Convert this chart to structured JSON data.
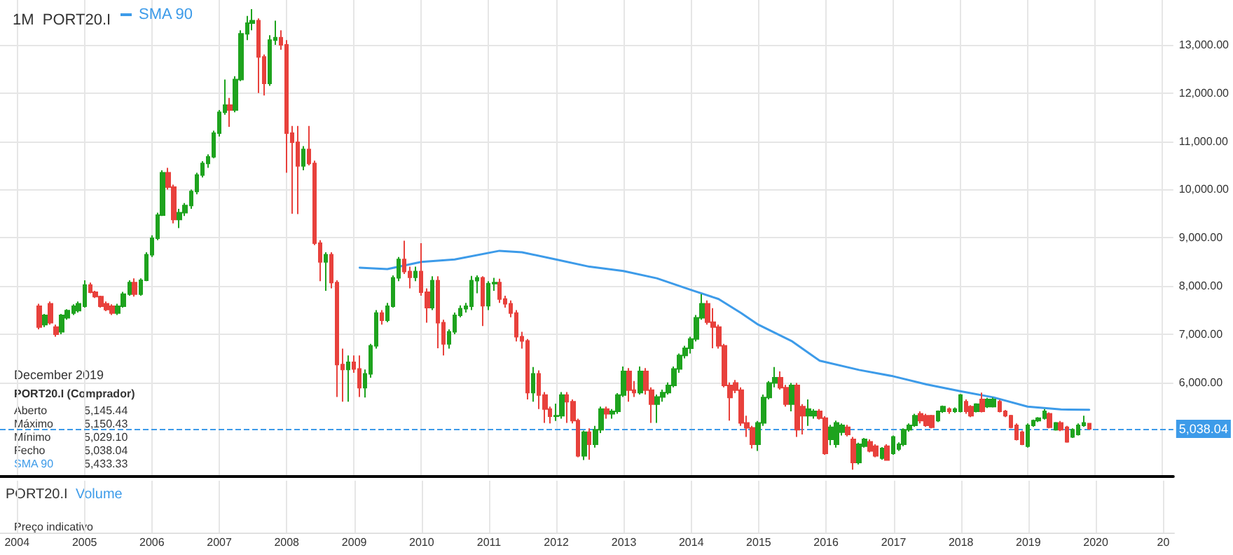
{
  "chart_data": {
    "type": "candlestick",
    "title": "1M  PORT20.I",
    "x": [
      "2004-05",
      "2004-06",
      "2004-07",
      "2004-08",
      "2004-09",
      "2004-10",
      "2004-11",
      "2004-12",
      "2005-01",
      "2005-02",
      "2005-03",
      "2005-04",
      "2005-05",
      "2005-06",
      "2005-07",
      "2005-08",
      "2005-09",
      "2005-10",
      "2005-11",
      "2005-12",
      "2006-01",
      "2006-02",
      "2006-03",
      "2006-04",
      "2006-05",
      "2006-06",
      "2006-07",
      "2006-08",
      "2006-09",
      "2006-10",
      "2006-11",
      "2006-12",
      "2007-01",
      "2007-02",
      "2007-03",
      "2007-04",
      "2007-05",
      "2007-06",
      "2007-07",
      "2007-08",
      "2007-09",
      "2007-10",
      "2007-11",
      "2007-12",
      "2008-01",
      "2008-02",
      "2008-03",
      "2008-04",
      "2008-05",
      "2008-06",
      "2008-07",
      "2008-08",
      "2008-09",
      "2008-10",
      "2008-11",
      "2008-12",
      "2009-01",
      "2009-02",
      "2009-03",
      "2009-04",
      "2009-05",
      "2009-06",
      "2009-07",
      "2009-08",
      "2009-09",
      "2009-10",
      "2009-11",
      "2009-12",
      "2010-01",
      "2010-02",
      "2010-03",
      "2010-04",
      "2010-05",
      "2010-06",
      "2010-07",
      "2010-08",
      "2010-09",
      "2010-10",
      "2010-11",
      "2010-12",
      "2011-01",
      "2011-02",
      "2011-03",
      "2011-04",
      "2011-05",
      "2011-06",
      "2011-07",
      "2011-08",
      "2011-09",
      "2011-10",
      "2011-11",
      "2011-12",
      "2012-01",
      "2012-02",
      "2012-03",
      "2012-04",
      "2012-05",
      "2012-06",
      "2012-07",
      "2012-08",
      "2012-09",
      "2012-10",
      "2012-11",
      "2012-12",
      "2013-01",
      "2013-02",
      "2013-03",
      "2013-04",
      "2013-05",
      "2013-06",
      "2013-07",
      "2013-08",
      "2013-09",
      "2013-10",
      "2013-11",
      "2013-12",
      "2014-01",
      "2014-02",
      "2014-03",
      "2014-04",
      "2014-05",
      "2014-06",
      "2014-07",
      "2014-08",
      "2014-09",
      "2014-10",
      "2014-11",
      "2014-12",
      "2015-01",
      "2015-02",
      "2015-03",
      "2015-04",
      "2015-05",
      "2015-06",
      "2015-07",
      "2015-08",
      "2015-09",
      "2015-10",
      "2015-11",
      "2015-12",
      "2016-01",
      "2016-02",
      "2016-03",
      "2016-04",
      "2016-05",
      "2016-06",
      "2016-07",
      "2016-08",
      "2016-09",
      "2016-10",
      "2016-11",
      "2016-12",
      "2017-01",
      "2017-02",
      "2017-03",
      "2017-04",
      "2017-05",
      "2017-06",
      "2017-07",
      "2017-08",
      "2017-09",
      "2017-10",
      "2017-11",
      "2017-12",
      "2018-01",
      "2018-02",
      "2018-03",
      "2018-04",
      "2018-05",
      "2018-06",
      "2018-07",
      "2018-08",
      "2018-09",
      "2018-10",
      "2018-11",
      "2018-12",
      "2019-01",
      "2019-02",
      "2019-03",
      "2019-04",
      "2019-05",
      "2019-06",
      "2019-07",
      "2019-08",
      "2019-09",
      "2019-10",
      "2019-11",
      "2019-12"
    ],
    "ohlc": [
      [
        7580,
        7630,
        7100,
        7150
      ],
      [
        7200,
        7420,
        7150,
        7390
      ],
      [
        7630,
        7680,
        7200,
        7240
      ],
      [
        7150,
        7200,
        6950,
        7000
      ],
      [
        7050,
        7420,
        7000,
        7390
      ],
      [
        7340,
        7520,
        7300,
        7490
      ],
      [
        7440,
        7620,
        7400,
        7580
      ],
      [
        7490,
        7680,
        7450,
        7630
      ],
      [
        7580,
        8120,
        7550,
        8020
      ],
      [
        8020,
        8070,
        7850,
        7870
      ],
      [
        7870,
        7900,
        7750,
        7780
      ],
      [
        7780,
        7800,
        7550,
        7580
      ],
      [
        7630,
        7680,
        7480,
        7510
      ],
      [
        7580,
        7620,
        7400,
        7440
      ],
      [
        7440,
        7630,
        7400,
        7580
      ],
      [
        7580,
        7880,
        7550,
        7830
      ],
      [
        7830,
        8120,
        7800,
        8070
      ],
      [
        8070,
        8160,
        7780,
        7830
      ],
      [
        7830,
        8160,
        7800,
        8120
      ],
      [
        8120,
        8700,
        8100,
        8650
      ],
      [
        8650,
        9050,
        8600,
        8990
      ],
      [
        8990,
        9520,
        8950,
        9470
      ],
      [
        9470,
        10400,
        9450,
        10350
      ],
      [
        10350,
        10450,
        10000,
        10050
      ],
      [
        10050,
        10100,
        9300,
        9380
      ],
      [
        9380,
        9600,
        9200,
        9520
      ],
      [
        9520,
        9720,
        9450,
        9670
      ],
      [
        9670,
        10000,
        9600,
        9960
      ],
      [
        9960,
        10350,
        9900,
        10300
      ],
      [
        10300,
        10590,
        10250,
        10540
      ],
      [
        10540,
        10730,
        10450,
        10680
      ],
      [
        10680,
        11220,
        10650,
        11170
      ],
      [
        11170,
        11650,
        11100,
        11600
      ],
      [
        11600,
        12280,
        11550,
        11750
      ],
      [
        11750,
        11900,
        11300,
        11650
      ],
      [
        11650,
        12350,
        11600,
        12280
      ],
      [
        12280,
        13300,
        12250,
        13230
      ],
      [
        13230,
        13600,
        13100,
        13450
      ],
      [
        13450,
        13740,
        13300,
        13500
      ],
      [
        13500,
        13550,
        12000,
        12750
      ],
      [
        12750,
        12800,
        11950,
        12200
      ],
      [
        12200,
        13200,
        12150,
        13100
      ],
      [
        13100,
        13500,
        13000,
        13150
      ],
      [
        13150,
        13300,
        12900,
        13000
      ],
      [
        13000,
        13100,
        10350,
        11170
      ],
      [
        11170,
        11320,
        9500,
        10980
      ],
      [
        10980,
        11320,
        9490,
        10490
      ],
      [
        10490,
        10900,
        10400,
        10830
      ],
      [
        10830,
        11320,
        10500,
        10540
      ],
      [
        10540,
        10600,
        8850,
        8890
      ],
      [
        8890,
        8950,
        8100,
        8500
      ],
      [
        8500,
        8700,
        7900,
        8650
      ],
      [
        8650,
        8700,
        7950,
        8070
      ],
      [
        8070,
        8120,
        5700,
        6370
      ],
      [
        6370,
        6700,
        5600,
        6270
      ],
      [
        6270,
        6560,
        5600,
        6420
      ],
      [
        6420,
        6560,
        6200,
        6280
      ],
      [
        6280,
        6560,
        5700,
        5890
      ],
      [
        5890,
        6270,
        5690,
        6180
      ],
      [
        6180,
        6800,
        6100,
        6760
      ],
      [
        6760,
        7500,
        6700,
        7440
      ],
      [
        7440,
        7500,
        7200,
        7290
      ],
      [
        7290,
        7650,
        7250,
        7580
      ],
      [
        7580,
        8220,
        7550,
        8170
      ],
      [
        8170,
        8600,
        8100,
        8550
      ],
      [
        8550,
        8940,
        8250,
        8300
      ],
      [
        8300,
        8400,
        7950,
        8180
      ],
      [
        8180,
        8400,
        8100,
        8300
      ],
      [
        8300,
        8890,
        7800,
        7870
      ],
      [
        7870,
        7950,
        7240,
        7550
      ],
      [
        7550,
        8200,
        7500,
        8110
      ],
      [
        8110,
        8200,
        6710,
        7240
      ],
      [
        7240,
        7300,
        6560,
        6800
      ],
      [
        6800,
        7100,
        6700,
        7050
      ],
      [
        7050,
        7450,
        7000,
        7390
      ],
      [
        7390,
        7600,
        7350,
        7530
      ],
      [
        7530,
        7650,
        7450,
        7580
      ],
      [
        7580,
        8210,
        7500,
        8110
      ],
      [
        8110,
        8220,
        7850,
        8170
      ],
      [
        8170,
        8200,
        7170,
        7590
      ],
      [
        7590,
        8100,
        7500,
        8050
      ],
      [
        8050,
        8170,
        7900,
        8070
      ],
      [
        8070,
        8150,
        7650,
        7730
      ],
      [
        7730,
        7800,
        7550,
        7630
      ],
      [
        7630,
        7700,
        7350,
        7440
      ],
      [
        7440,
        7500,
        6850,
        6950
      ],
      [
        6950,
        7050,
        6700,
        6860
      ],
      [
        6860,
        6900,
        5650,
        5790
      ],
      [
        5790,
        6320,
        5600,
        6180
      ],
      [
        6180,
        6250,
        5450,
        5740
      ],
      [
        5740,
        5800,
        5160,
        5450
      ],
      [
        5450,
        5500,
        5150,
        5300
      ],
      [
        5300,
        5560,
        5200,
        5310
      ],
      [
        5310,
        5800,
        5250,
        5740
      ],
      [
        5740,
        5800,
        5160,
        5600
      ],
      [
        5600,
        5650,
        5150,
        5210
      ],
      [
        5210,
        5250,
        4450,
        4480
      ],
      [
        4480,
        5000,
        4390,
        4970
      ],
      [
        4970,
        5050,
        4400,
        4720
      ],
      [
        4720,
        5100,
        4650,
        5020
      ],
      [
        5020,
        5500,
        4950,
        5450
      ],
      [
        5450,
        5500,
        5250,
        5350
      ],
      [
        5350,
        5450,
        5250,
        5400
      ],
      [
        5400,
        5780,
        5350,
        5740
      ],
      [
        5740,
        6330,
        5700,
        6230
      ],
      [
        6230,
        6300,
        5600,
        5840
      ],
      [
        5840,
        6030,
        5700,
        5790
      ],
      [
        5790,
        6330,
        5750,
        6230
      ],
      [
        6230,
        6300,
        5750,
        5840
      ],
      [
        5840,
        5900,
        5160,
        5550
      ],
      [
        5550,
        5750,
        5160,
        5700
      ],
      [
        5700,
        5850,
        5600,
        5790
      ],
      [
        5790,
        6000,
        5750,
        5940
      ],
      [
        5940,
        6330,
        5900,
        6280
      ],
      [
        6280,
        6600,
        6200,
        6560
      ],
      [
        6560,
        6760,
        6500,
        6710
      ],
      [
        6710,
        6950,
        6600,
        6900
      ],
      [
        6900,
        7400,
        6850,
        7340
      ],
      [
        7340,
        7830,
        7300,
        7630
      ],
      [
        7630,
        7700,
        7200,
        7250
      ],
      [
        7250,
        7540,
        6710,
        7150
      ],
      [
        7150,
        7200,
        6700,
        6760
      ],
      [
        6760,
        6800,
        5900,
        5940
      ],
      [
        5940,
        6000,
        5210,
        5690
      ],
      [
        5990,
        6050,
        5780,
        5840
      ],
      [
        5840,
        5900,
        5100,
        5160
      ],
      [
        5160,
        5310,
        4870,
        5060
      ],
      [
        5060,
        5100,
        4630,
        4720
      ],
      [
        4720,
        5200,
        4580,
        5160
      ],
      [
        5160,
        5750,
        5100,
        5690
      ],
      [
        5690,
        6030,
        5650,
        5990
      ],
      [
        5990,
        6320,
        5900,
        6100
      ],
      [
        6100,
        6230,
        5850,
        5890
      ],
      [
        5890,
        5950,
        5500,
        5550
      ],
      [
        5550,
        5990,
        5400,
        5940
      ],
      [
        5940,
        5990,
        4870,
        5020
      ],
      [
        5500,
        5550,
        4920,
        5310
      ],
      [
        5310,
        5650,
        5100,
        5450
      ],
      [
        5310,
        5450,
        5250,
        5400
      ],
      [
        5400,
        5450,
        5230,
        5260
      ],
      [
        5260,
        5300,
        4500,
        4530
      ],
      [
        4820,
        5120,
        4700,
        5070
      ],
      [
        4720,
        5210,
        4650,
        5160
      ],
      [
        4970,
        5150,
        4900,
        5110
      ],
      [
        5070,
        5120,
        4880,
        4920
      ],
      [
        4820,
        4870,
        4190,
        4340
      ],
      [
        4340,
        4750,
        4300,
        4720
      ],
      [
        4680,
        4850,
        4650,
        4820
      ],
      [
        4770,
        4820,
        4550,
        4580
      ],
      [
        4680,
        4720,
        4450,
        4480
      ],
      [
        4430,
        4660,
        4400,
        4630
      ],
      [
        4680,
        4720,
        4380,
        4390
      ],
      [
        4530,
        4900,
        4500,
        4870
      ],
      [
        4620,
        4760,
        4580,
        4720
      ],
      [
        4720,
        5050,
        4680,
        5020
      ],
      [
        5020,
        5150,
        4980,
        5110
      ],
      [
        5110,
        5350,
        5080,
        5310
      ],
      [
        5350,
        5400,
        5150,
        5210
      ],
      [
        5310,
        5350,
        5080,
        5110
      ],
      [
        5310,
        5330,
        5050,
        5070
      ],
      [
        5210,
        5420,
        5180,
        5400
      ],
      [
        5400,
        5520,
        5370,
        5500
      ],
      [
        5450,
        5480,
        5350,
        5400
      ],
      [
        5400,
        5480,
        5370,
        5450
      ],
      [
        5400,
        5760,
        5380,
        5740
      ],
      [
        5600,
        5650,
        5350,
        5400
      ],
      [
        5500,
        5530,
        5280,
        5310
      ],
      [
        5400,
        5570,
        5380,
        5550
      ],
      [
        5650,
        5790,
        5380,
        5400
      ],
      [
        5500,
        5680,
        5470,
        5650
      ],
      [
        5500,
        5690,
        5480,
        5650
      ],
      [
        5600,
        5640,
        5380,
        5400
      ],
      [
        5400,
        5430,
        5280,
        5310
      ],
      [
        5310,
        5330,
        5050,
        5070
      ],
      [
        5110,
        5150,
        4800,
        4820
      ],
      [
        4970,
        5000,
        4700,
        4720
      ],
      [
        4680,
        5150,
        4650,
        5110
      ],
      [
        5110,
        5230,
        5080,
        5210
      ],
      [
        5210,
        5280,
        5180,
        5260
      ],
      [
        5260,
        5450,
        5230,
        5400
      ],
      [
        5350,
        5380,
        5050,
        5070
      ],
      [
        5020,
        5180,
        5000,
        5160
      ],
      [
        5160,
        5200,
        4990,
        5020
      ],
      [
        5070,
        5100,
        4750,
        4770
      ],
      [
        4870,
        5050,
        4850,
        5020
      ],
      [
        4920,
        5150,
        4900,
        5110
      ],
      [
        5110,
        5310,
        5080,
        5160
      ],
      [
        5145.44,
        5150.43,
        5029.1,
        5038.04
      ]
    ],
    "colors": [
      "#e8413c",
      "#1ea31e",
      "#e8413c",
      "#e8413c",
      "#1ea31e",
      "#1ea31e",
      "#1ea31e",
      "#1ea31e",
      "#1ea31e",
      "#e8413c",
      "#e8413c",
      "#e8413c",
      "#e8413c",
      "#e8413c",
      "#1ea31e",
      "#1ea31e",
      "#1ea31e",
      "#e8413c",
      "#1ea31e",
      "#1ea31e",
      "#1ea31e",
      "#1ea31e",
      "#1ea31e",
      "#e8413c",
      "#e8413c",
      "#1ea31e",
      "#1ea31e",
      "#1ea31e",
      "#1ea31e",
      "#1ea31e",
      "#1ea31e",
      "#1ea31e",
      "#1ea31e",
      "#1ea31e",
      "#e8413c",
      "#1ea31e",
      "#1ea31e",
      "#1ea31e",
      "#1ea31e",
      "#e8413c",
      "#e8413c",
      "#1ea31e",
      "#1ea31e",
      "#e8413c",
      "#e8413c",
      "#e8413c",
      "#e8413c",
      "#1ea31e",
      "#e8413c",
      "#e8413c",
      "#e8413c",
      "#1ea31e",
      "#e8413c",
      "#e8413c",
      "#e8413c",
      "#1ea31e",
      "#e8413c",
      "#e8413c",
      "#1ea31e",
      "#1ea31e",
      "#1ea31e",
      "#e8413c",
      "#1ea31e",
      "#1ea31e",
      "#1ea31e",
      "#e8413c",
      "#e8413c",
      "#1ea31e",
      "#e8413c",
      "#e8413c",
      "#1ea31e",
      "#e8413c",
      "#e8413c",
      "#1ea31e",
      "#1ea31e",
      "#1ea31e",
      "#1ea31e",
      "#1ea31e",
      "#1ea31e",
      "#e8413c",
      "#1ea31e",
      "#1ea31e",
      "#e8413c",
      "#e8413c",
      "#e8413c",
      "#e8413c",
      "#e8413c",
      "#e8413c",
      "#1ea31e",
      "#e8413c",
      "#e8413c",
      "#e8413c",
      "#1ea31e",
      "#1ea31e",
      "#e8413c",
      "#e8413c",
      "#e8413c",
      "#1ea31e",
      "#e8413c",
      "#1ea31e",
      "#1ea31e",
      "#e8413c",
      "#1ea31e",
      "#1ea31e",
      "#1ea31e",
      "#e8413c",
      "#e8413c",
      "#1ea31e",
      "#e8413c",
      "#e8413c",
      "#1ea31e",
      "#1ea31e",
      "#1ea31e",
      "#1ea31e",
      "#1ea31e",
      "#1ea31e",
      "#1ea31e",
      "#1ea31e",
      "#1ea31e",
      "#e8413c",
      "#e8413c",
      "#e8413c",
      "#e8413c",
      "#e8413c",
      "#e8413c",
      "#e8413c",
      "#e8413c",
      "#e8413c",
      "#1ea31e",
      "#1ea31e",
      "#1ea31e",
      "#1ea31e",
      "#e8413c",
      "#e8413c",
      "#1ea31e",
      "#e8413c",
      "#e8413c",
      "#1ea31e",
      "#1ea31e",
      "#e8413c",
      "#e8413c",
      "#1ea31e",
      "#1ea31e",
      "#1ea31e",
      "#e8413c",
      "#e8413c",
      "#1ea31e",
      "#1ea31e",
      "#e8413c",
      "#e8413c",
      "#1ea31e",
      "#e8413c",
      "#1ea31e",
      "#1ea31e",
      "#1ea31e",
      "#1ea31e",
      "#1ea31e",
      "#e8413c",
      "#e8413c",
      "#e8413c",
      "#1ea31e",
      "#1ea31e",
      "#e8413c",
      "#1ea31e",
      "#1ea31e",
      "#e8413c",
      "#e8413c",
      "#1ea31e",
      "#e8413c",
      "#1ea31e",
      "#1ea31e",
      "#e8413c",
      "#e8413c",
      "#e8413c",
      "#e8413c",
      "#e8413c",
      "#1ea31e",
      "#1ea31e",
      "#1ea31e",
      "#1ea31e",
      "#e8413c",
      "#1ea31e",
      "#e8413c",
      "#e8413c",
      "#1ea31e",
      "#1ea31e",
      "#1ea31e",
      "#e8413c"
    ],
    "series": [
      {
        "type": "line",
        "name": "SMA 90",
        "color": "#3d9be9",
        "x": [
          "2009-02",
          "2009-07",
          "2010-01",
          "2010-07",
          "2011-03",
          "2011-07",
          "2012-01",
          "2012-07",
          "2013-01",
          "2013-07",
          "2014-01",
          "2014-06",
          "2014-10",
          "2015-01",
          "2015-07",
          "2015-12",
          "2016-07",
          "2017-01",
          "2017-07",
          "2018-01",
          "2018-07",
          "2019-01",
          "2019-07",
          "2019-12"
        ],
        "values": [
          8380,
          8350,
          8500,
          8550,
          8730,
          8700,
          8550,
          8400,
          8310,
          8160,
          7920,
          7730,
          7440,
          7200,
          6860,
          6450,
          6260,
          6130,
          5960,
          5820,
          5690,
          5500,
          5440,
          5433.33
        ]
      }
    ],
    "xlim": [
      "2003-10",
      "2021-03"
    ],
    "xticks": [
      "2004",
      "2005",
      "2006",
      "2007",
      "2008",
      "2009",
      "2010",
      "2011",
      "2012",
      "2013",
      "2014",
      "2015",
      "2016",
      "2017",
      "2018",
      "2019",
      "2020",
      {
        "value": "2021",
        "label": "20"
      }
    ],
    "ylim": [
      4050,
      13930
    ],
    "yticks": [
      {
        "value": 6000,
        "label": "6,000.00"
      },
      {
        "value": 7000,
        "label": "7,000.00"
      },
      {
        "value": 8000,
        "label": "8,000.00"
      },
      {
        "value": 9000,
        "label": "9,000.00"
      },
      {
        "value": 10000,
        "label": "10,000.00"
      },
      {
        "value": 11000,
        "label": "11,000.00"
      },
      {
        "value": 12000,
        "label": "12,000.00"
      },
      {
        "value": 13000,
        "label": "13,000.00"
      }
    ],
    "ref_lines": [
      {
        "axis": "y",
        "value": 5038.04,
        "label": "5,038.04",
        "color": "#3d9be9",
        "line_style": "dashed"
      }
    ],
    "annotations": [
      "December 2019",
      "PORT20.I (Comprador)",
      "Aberto",
      "5,145.44",
      "Máximo",
      "5,150.43",
      "Mínimo",
      "5,029.10",
      "Fecho",
      "5,038.04",
      "SMA 90",
      "5,433.33",
      "PORT20.I",
      "Volume",
      "Preço indicativo"
    ],
    "grid": true,
    "legend": "top left",
    "marker": "none",
    "line_style": "solid"
  }
}
